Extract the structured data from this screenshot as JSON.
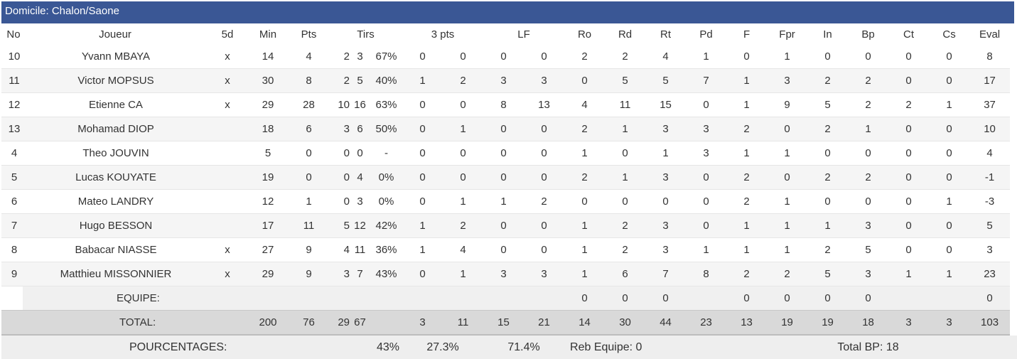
{
  "title": "Domicile: Chalon/Saone",
  "headers": {
    "no": "No",
    "joueur": "Joueur",
    "five": "5d",
    "min": "Min",
    "pts": "Pts",
    "tirs": "Tirs",
    "trois": "3 pts",
    "lf": "LF",
    "ro": "Ro",
    "rd": "Rd",
    "rt": "Rt",
    "pd": "Pd",
    "f": "F",
    "fpr": "Fpr",
    "in": "In",
    "bp": "Bp",
    "ct": "Ct",
    "cs": "Cs",
    "eval": "Eval"
  },
  "players": [
    {
      "no": "10",
      "name": "Yvann MBAYA",
      "five": "x",
      "min": "14",
      "pts": "4",
      "tr": "2",
      "ta": "3",
      "tp": "67%",
      "p3r": "0",
      "p3a": "0",
      "lfr": "0",
      "lfa": "0",
      "ro": "2",
      "rd": "2",
      "rt": "4",
      "pd": "1",
      "f": "0",
      "fpr": "1",
      "in": "0",
      "bp": "0",
      "ct": "0",
      "cs": "0",
      "eval": "8"
    },
    {
      "no": "11",
      "name": "Victor MOPSUS",
      "five": "x",
      "min": "30",
      "pts": "8",
      "tr": "2",
      "ta": "5",
      "tp": "40%",
      "p3r": "1",
      "p3a": "2",
      "lfr": "3",
      "lfa": "3",
      "ro": "0",
      "rd": "5",
      "rt": "5",
      "pd": "7",
      "f": "1",
      "fpr": "3",
      "in": "2",
      "bp": "2",
      "ct": "0",
      "cs": "0",
      "eval": "17"
    },
    {
      "no": "12",
      "name": "Etienne CA",
      "five": "x",
      "min": "29",
      "pts": "28",
      "tr": "10",
      "ta": "16",
      "tp": "63%",
      "p3r": "0",
      "p3a": "0",
      "lfr": "8",
      "lfa": "13",
      "ro": "4",
      "rd": "11",
      "rt": "15",
      "pd": "0",
      "f": "1",
      "fpr": "9",
      "in": "5",
      "bp": "2",
      "ct": "2",
      "cs": "1",
      "eval": "37"
    },
    {
      "no": "13",
      "name": "Mohamad DIOP",
      "five": "",
      "min": "18",
      "pts": "6",
      "tr": "3",
      "ta": "6",
      "tp": "50%",
      "p3r": "0",
      "p3a": "1",
      "lfr": "0",
      "lfa": "0",
      "ro": "2",
      "rd": "1",
      "rt": "3",
      "pd": "3",
      "f": "2",
      "fpr": "0",
      "in": "2",
      "bp": "1",
      "ct": "0",
      "cs": "0",
      "eval": "10"
    },
    {
      "no": "4",
      "name": "Theo JOUVIN",
      "five": "",
      "min": "5",
      "pts": "0",
      "tr": "0",
      "ta": "0",
      "tp": "-",
      "p3r": "0",
      "p3a": "0",
      "lfr": "0",
      "lfa": "0",
      "ro": "1",
      "rd": "0",
      "rt": "1",
      "pd": "3",
      "f": "1",
      "fpr": "1",
      "in": "0",
      "bp": "0",
      "ct": "0",
      "cs": "0",
      "eval": "4"
    },
    {
      "no": "5",
      "name": "Lucas KOUYATE",
      "five": "",
      "min": "19",
      "pts": "0",
      "tr": "0",
      "ta": "4",
      "tp": "0%",
      "p3r": "0",
      "p3a": "0",
      "lfr": "0",
      "lfa": "0",
      "ro": "2",
      "rd": "1",
      "rt": "3",
      "pd": "0",
      "f": "2",
      "fpr": "0",
      "in": "2",
      "bp": "2",
      "ct": "0",
      "cs": "0",
      "eval": "-1"
    },
    {
      "no": "6",
      "name": "Mateo LANDRY",
      "five": "",
      "min": "12",
      "pts": "1",
      "tr": "0",
      "ta": "3",
      "tp": "0%",
      "p3r": "0",
      "p3a": "1",
      "lfr": "1",
      "lfa": "2",
      "ro": "0",
      "rd": "0",
      "rt": "0",
      "pd": "0",
      "f": "2",
      "fpr": "1",
      "in": "0",
      "bp": "0",
      "ct": "0",
      "cs": "1",
      "eval": "-3"
    },
    {
      "no": "7",
      "name": "Hugo BESSON",
      "five": "",
      "min": "17",
      "pts": "11",
      "tr": "5",
      "ta": "12",
      "tp": "42%",
      "p3r": "1",
      "p3a": "2",
      "lfr": "0",
      "lfa": "0",
      "ro": "1",
      "rd": "2",
      "rt": "3",
      "pd": "0",
      "f": "1",
      "fpr": "1",
      "in": "1",
      "bp": "3",
      "ct": "0",
      "cs": "0",
      "eval": "5"
    },
    {
      "no": "8",
      "name": "Babacar NIASSE",
      "five": "x",
      "min": "27",
      "pts": "9",
      "tr": "4",
      "ta": "11",
      "tp": "36%",
      "p3r": "1",
      "p3a": "4",
      "lfr": "0",
      "lfa": "0",
      "ro": "1",
      "rd": "2",
      "rt": "3",
      "pd": "1",
      "f": "1",
      "fpr": "1",
      "in": "2",
      "bp": "5",
      "ct": "0",
      "cs": "0",
      "eval": "3"
    },
    {
      "no": "9",
      "name": "Matthieu MISSONNIER",
      "five": "x",
      "min": "29",
      "pts": "9",
      "tr": "3",
      "ta": "7",
      "tp": "43%",
      "p3r": "0",
      "p3a": "1",
      "lfr": "3",
      "lfa": "3",
      "ro": "1",
      "rd": "6",
      "rt": "7",
      "pd": "8",
      "f": "2",
      "fpr": "2",
      "in": "5",
      "bp": "3",
      "ct": "1",
      "cs": "1",
      "eval": "23"
    }
  ],
  "equipe": {
    "label": "EQUIPE:",
    "ro": "0",
    "rd": "0",
    "rt": "0",
    "f": "0",
    "fpr": "0",
    "in": "0",
    "bp": "0",
    "eval": "0"
  },
  "total": {
    "label": "TOTAL:",
    "min": "200",
    "pts": "76",
    "tr": "29",
    "ta": "67",
    "p3r": "3",
    "p3a": "11",
    "lfr": "15",
    "lfa": "21",
    "ro": "14",
    "rd": "30",
    "rt": "44",
    "pd": "23",
    "f": "13",
    "fpr": "19",
    "in": "19",
    "bp": "18",
    "ct": "3",
    "cs": "3",
    "eval": "103"
  },
  "pourcentages": {
    "label": "POURCENTAGES:",
    "tirs": "43%",
    "trois": "27.3%",
    "lf": "71.4%",
    "reb_equipe": "Reb Equipe: 0",
    "total_bp": "Total BP: 18"
  }
}
